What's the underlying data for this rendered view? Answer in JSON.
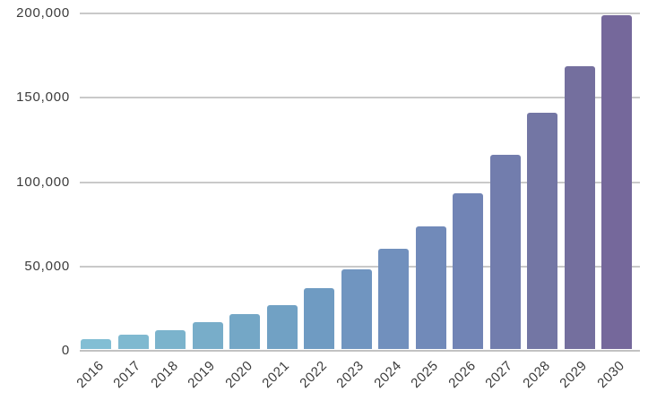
{
  "chart_data": {
    "type": "bar",
    "title": "",
    "xlabel": "",
    "ylabel": "",
    "categories": [
      "2016",
      "2017",
      "2018",
      "2019",
      "2020",
      "2021",
      "2022",
      "2023",
      "2024",
      "2025",
      "2026",
      "2027",
      "2028",
      "2029",
      "2030"
    ],
    "values": [
      6000,
      8300,
      11000,
      15800,
      20800,
      26300,
      36500,
      47400,
      59500,
      73000,
      92700,
      115700,
      140600,
      168800,
      198700
    ],
    "bar_colors": [
      "#82BED4",
      "#7FB9D0",
      "#7BB3CC",
      "#78ADC9",
      "#74A7C6",
      "#71A1C4",
      "#6F9BC2",
      "#7095C0",
      "#7190BD",
      "#718AB9",
      "#7184B5",
      "#727DAD",
      "#7376A4",
      "#746F9E",
      "#75689B"
    ],
    "ylim": [
      0,
      200000
    ],
    "y_ticks": [
      "0",
      "50,000",
      "100,000",
      "150,000",
      "200,000"
    ],
    "grid": true,
    "legend": "none",
    "gridline_color": "#c9c9c9",
    "text_color": "#3b3b3b",
    "background_color": "#ffffff"
  }
}
